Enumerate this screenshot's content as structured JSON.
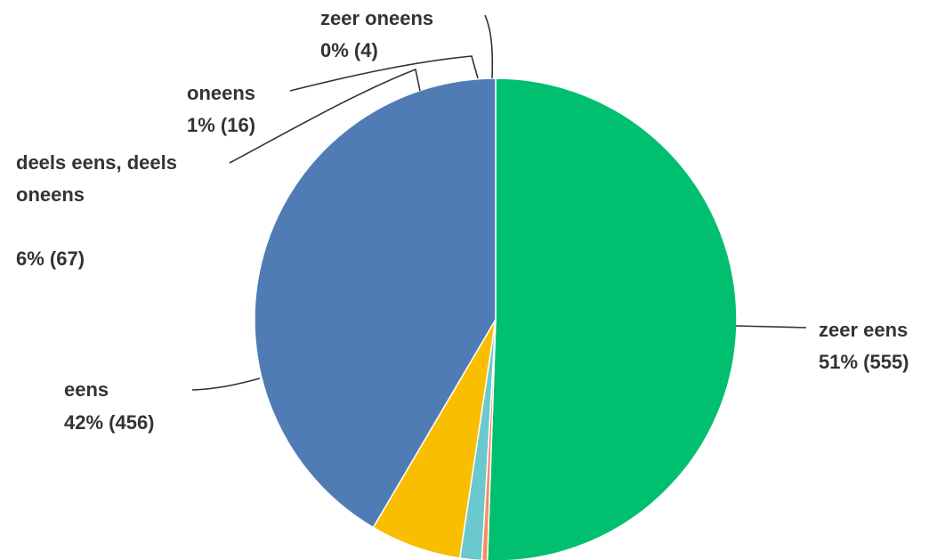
{
  "chart_data": {
    "type": "pie",
    "start_angle_deg": 0,
    "direction": "clockwise",
    "slices": [
      {
        "name": "zeer eens",
        "value": 555,
        "percent_label": "51% (555)",
        "color": "#00bf6f"
      },
      {
        "name": "zeer oneens",
        "value": 4,
        "percent_label": "0% (4)",
        "color": "#f98b62"
      },
      {
        "name": "oneens",
        "value": 16,
        "percent_label": "1% (16)",
        "color": "#6bc8cd"
      },
      {
        "name": "deels eens, deels oneens",
        "name_lines": [
          "deels eens, deels",
          "oneens"
        ],
        "value": 67,
        "percent_label": "6% (67)",
        "color": "#f9be00"
      },
      {
        "name": "eens",
        "value": 456,
        "percent_label": "42% (456)",
        "color": "#507cb6"
      }
    ],
    "draw_order": [
      0,
      4,
      3,
      2,
      1
    ]
  }
}
